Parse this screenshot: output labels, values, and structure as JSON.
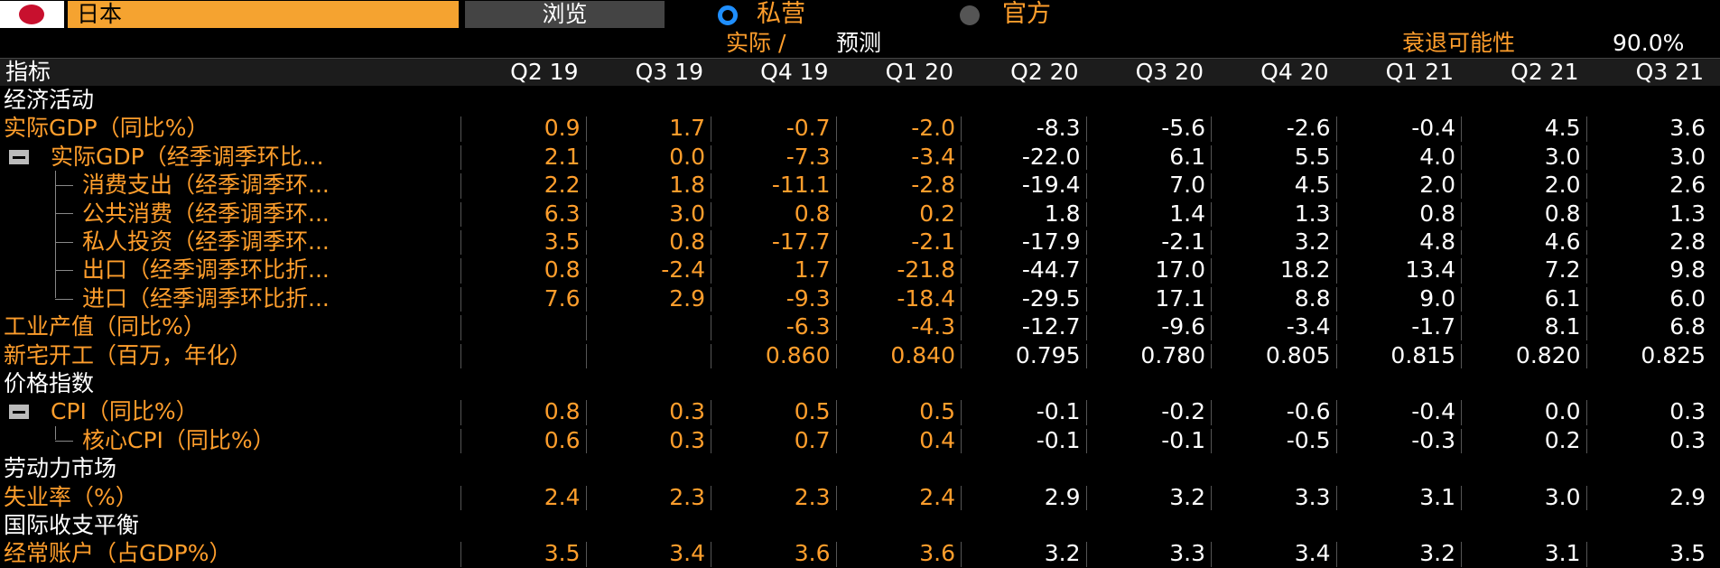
{
  "header": {
    "country": "日本",
    "browse": "浏览",
    "radio_private": "私营",
    "radio_official": "官方",
    "actual": "实际 /",
    "forecast": "预测",
    "recession_label": "衰退可能性",
    "recession_value": "90.0%"
  },
  "table": {
    "columns": [
      "指标",
      "Q2 19",
      "Q3 19",
      "Q4 19",
      "Q1 20",
      "Q2 20",
      "Q3 20",
      "Q4 20",
      "Q1 21",
      "Q2 21",
      "Q3 21"
    ],
    "sections": [
      {
        "title": "经济活动",
        "rows": [
          {
            "label": "实际GDP（同比%）",
            "values": [
              "0.9",
              "1.7",
              "-0.7",
              "-2.0",
              "-8.3",
              "-5.6",
              "-2.6",
              "-0.4",
              "4.5",
              "3.6"
            ]
          },
          {
            "label": "实际GDP（经季调季环比...",
            "values": [
              "2.1",
              "0.0",
              "-7.3",
              "-3.4",
              "-22.0",
              "6.1",
              "5.5",
              "4.0",
              "3.0",
              "3.0"
            ],
            "children": [
              {
                "label": "消费支出（经季调季环...",
                "values": [
                  "2.2",
                  "1.8",
                  "-11.1",
                  "-2.8",
                  "-19.4",
                  "7.0",
                  "4.5",
                  "2.0",
                  "2.0",
                  "2.6"
                ]
              },
              {
                "label": "公共消费（经季调季环...",
                "values": [
                  "6.3",
                  "3.0",
                  "0.8",
                  "0.2",
                  "1.8",
                  "1.4",
                  "1.3",
                  "0.8",
                  "0.8",
                  "1.3"
                ]
              },
              {
                "label": "私人投资（经季调季环...",
                "values": [
                  "3.5",
                  "0.8",
                  "-17.7",
                  "-2.1",
                  "-17.9",
                  "-2.1",
                  "3.2",
                  "4.8",
                  "4.6",
                  "2.8"
                ]
              },
              {
                "label": "出口（经季调季环比折...",
                "values": [
                  "0.8",
                  "-2.4",
                  "1.7",
                  "-21.8",
                  "-44.7",
                  "17.0",
                  "18.2",
                  "13.4",
                  "7.2",
                  "9.8"
                ]
              },
              {
                "label": "进口（经季调季环比折...",
                "values": [
                  "7.6",
                  "2.9",
                  "-9.3",
                  "-18.4",
                  "-29.5",
                  "17.1",
                  "8.8",
                  "9.0",
                  "6.1",
                  "6.0"
                ]
              }
            ]
          },
          {
            "label": "工业产值（同比%）",
            "values": [
              null,
              null,
              "-6.3",
              "-4.3",
              "-12.7",
              "-9.6",
              "-3.4",
              "-1.7",
              "8.1",
              "6.8"
            ]
          },
          {
            "label": "新宅开工（百万，年化）",
            "values": [
              null,
              null,
              "0.860",
              "0.840",
              "0.795",
              "0.780",
              "0.805",
              "0.815",
              "0.820",
              "0.825"
            ]
          }
        ]
      },
      {
        "title": "价格指数",
        "rows": [
          {
            "label": "CPI（同比%）",
            "values": [
              "0.8",
              "0.3",
              "0.5",
              "0.5",
              "-0.1",
              "-0.2",
              "-0.6",
              "-0.4",
              "0.0",
              "0.3"
            ],
            "children": [
              {
                "label": "核心CPI（同比%）",
                "values": [
                  "0.6",
                  "0.3",
                  "0.7",
                  "0.4",
                  "-0.1",
                  "-0.1",
                  "-0.5",
                  "-0.3",
                  "0.2",
                  "0.3"
                ]
              }
            ]
          }
        ]
      },
      {
        "title": "劳动力市场",
        "rows": [
          {
            "label": "失业率（%）",
            "values": [
              "2.4",
              "2.3",
              "2.3",
              "2.4",
              "2.9",
              "3.2",
              "3.3",
              "3.1",
              "3.0",
              "2.9"
            ]
          }
        ]
      },
      {
        "title": "国际收支平衡",
        "rows": [
          {
            "label": "经常账户（占GDP%）",
            "values": [
              "3.5",
              "3.4",
              "3.6",
              "3.6",
              "3.2",
              "3.3",
              "3.4",
              "3.2",
              "3.1",
              "3.5"
            ]
          }
        ]
      }
    ]
  }
}
